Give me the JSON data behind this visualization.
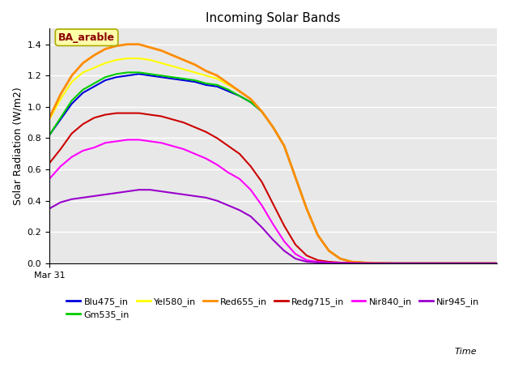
{
  "title": "Incoming Solar Bands",
  "ylabel": "Solar Radiation (W/m2)",
  "annotation": "BA_arable",
  "annotation_color": "#8B0000",
  "annotation_bg": "#FFFFAA",
  "annotation_border": "#AAAA00",
  "ylim": [
    0.0,
    1.5
  ],
  "x_tick_label": "Mar 31",
  "x_tick_pos": 0,
  "time_label": "Time",
  "background_color": "#E8E8E8",
  "series_order": [
    "Blu475_in",
    "Gm535_in",
    "Yel580_in",
    "Red655_in",
    "Redg715_in",
    "Nir840_in",
    "Nir945_in"
  ],
  "series": {
    "Blu475_in": {
      "color": "#0000DD",
      "lw": 1.5,
      "x": [
        0,
        1,
        2,
        3,
        4,
        5,
        6,
        7,
        8,
        9,
        10,
        11,
        12,
        13,
        14,
        15,
        16,
        17,
        18,
        19,
        20,
        21,
        22,
        23,
        24,
        25,
        26,
        27,
        28,
        29,
        30,
        31,
        32,
        33,
        34,
        35,
        36,
        37,
        38,
        39,
        40
      ],
      "y": [
        0.82,
        0.92,
        1.02,
        1.09,
        1.13,
        1.17,
        1.19,
        1.2,
        1.21,
        1.2,
        1.19,
        1.18,
        1.17,
        1.16,
        1.14,
        1.13,
        1.1,
        1.07,
        1.03,
        0.97,
        0.87,
        0.75,
        0.55,
        0.35,
        0.18,
        0.08,
        0.03,
        0.01,
        0.005,
        0.002,
        0.001,
        0.0,
        0.0,
        0.0,
        0.0,
        0.0,
        0.0,
        0.0,
        0.0,
        0.0,
        0.0
      ]
    },
    "Gm535_in": {
      "color": "#00CC00",
      "lw": 1.5,
      "x": [
        0,
        1,
        2,
        3,
        4,
        5,
        6,
        7,
        8,
        9,
        10,
        11,
        12,
        13,
        14,
        15,
        16,
        17,
        18,
        19,
        20,
        21,
        22,
        23,
        24,
        25,
        26,
        27,
        28,
        29,
        30,
        31,
        32,
        33,
        34,
        35,
        36,
        37,
        38,
        39,
        40
      ],
      "y": [
        0.82,
        0.93,
        1.04,
        1.11,
        1.15,
        1.19,
        1.21,
        1.22,
        1.22,
        1.21,
        1.2,
        1.19,
        1.18,
        1.17,
        1.15,
        1.14,
        1.11,
        1.07,
        1.03,
        0.97,
        0.87,
        0.75,
        0.55,
        0.35,
        0.18,
        0.08,
        0.03,
        0.01,
        0.005,
        0.002,
        0.001,
        0.0,
        0.0,
        0.0,
        0.0,
        0.0,
        0.0,
        0.0,
        0.0,
        0.0,
        0.0
      ]
    },
    "Yel580_in": {
      "color": "#FFFF00",
      "lw": 1.5,
      "x": [
        0,
        1,
        2,
        3,
        4,
        5,
        6,
        7,
        8,
        9,
        10,
        11,
        12,
        13,
        14,
        15,
        16,
        17,
        18,
        19,
        20,
        21,
        22,
        23,
        24,
        25,
        26,
        27,
        28,
        29,
        30,
        31,
        32,
        33,
        34,
        35,
        36,
        37,
        38,
        39,
        40
      ],
      "y": [
        0.92,
        1.05,
        1.16,
        1.22,
        1.25,
        1.28,
        1.3,
        1.31,
        1.31,
        1.3,
        1.28,
        1.26,
        1.24,
        1.22,
        1.2,
        1.18,
        1.14,
        1.1,
        1.05,
        0.97,
        0.87,
        0.75,
        0.55,
        0.35,
        0.18,
        0.08,
        0.03,
        0.01,
        0.005,
        0.002,
        0.001,
        0.0,
        0.0,
        0.0,
        0.0,
        0.0,
        0.0,
        0.0,
        0.0,
        0.0,
        0.0
      ]
    },
    "Red655_in": {
      "color": "#FF8C00",
      "lw": 2.0,
      "x": [
        0,
        1,
        2,
        3,
        4,
        5,
        6,
        7,
        8,
        9,
        10,
        11,
        12,
        13,
        14,
        15,
        16,
        17,
        18,
        19,
        20,
        21,
        22,
        23,
        24,
        25,
        26,
        27,
        28,
        29,
        30,
        31,
        32,
        33,
        34,
        35,
        36,
        37,
        38,
        39,
        40
      ],
      "y": [
        0.93,
        1.08,
        1.2,
        1.28,
        1.33,
        1.37,
        1.39,
        1.4,
        1.4,
        1.38,
        1.36,
        1.33,
        1.3,
        1.27,
        1.23,
        1.2,
        1.15,
        1.1,
        1.05,
        0.97,
        0.87,
        0.75,
        0.55,
        0.35,
        0.18,
        0.08,
        0.03,
        0.01,
        0.005,
        0.002,
        0.001,
        0.0,
        0.0,
        0.0,
        0.0,
        0.0,
        0.0,
        0.0,
        0.0,
        0.0,
        0.0
      ]
    },
    "Redg715_in": {
      "color": "#CC0000",
      "lw": 1.5,
      "x": [
        0,
        1,
        2,
        3,
        4,
        5,
        6,
        7,
        8,
        9,
        10,
        11,
        12,
        13,
        14,
        15,
        16,
        17,
        18,
        19,
        20,
        21,
        22,
        23,
        24,
        25,
        26,
        27,
        28,
        29,
        30,
        31,
        32,
        33,
        34,
        35,
        36,
        37,
        38,
        39,
        40
      ],
      "y": [
        0.64,
        0.73,
        0.83,
        0.89,
        0.93,
        0.95,
        0.96,
        0.96,
        0.96,
        0.95,
        0.94,
        0.92,
        0.9,
        0.87,
        0.84,
        0.8,
        0.75,
        0.7,
        0.62,
        0.52,
        0.38,
        0.24,
        0.12,
        0.05,
        0.02,
        0.01,
        0.005,
        0.002,
        0.001,
        0.0,
        0.0,
        0.0,
        0.0,
        0.0,
        0.0,
        0.0,
        0.0,
        0.0,
        0.0,
        0.0,
        0.0
      ]
    },
    "Nir840_in": {
      "color": "#FF00FF",
      "lw": 1.5,
      "x": [
        0,
        1,
        2,
        3,
        4,
        5,
        6,
        7,
        8,
        9,
        10,
        11,
        12,
        13,
        14,
        15,
        16,
        17,
        18,
        19,
        20,
        21,
        22,
        23,
        24,
        25,
        26,
        27,
        28,
        29,
        30,
        31,
        32,
        33,
        34,
        35,
        36,
        37,
        38,
        39,
        40
      ],
      "y": [
        0.54,
        0.62,
        0.68,
        0.72,
        0.74,
        0.77,
        0.78,
        0.79,
        0.79,
        0.78,
        0.77,
        0.75,
        0.73,
        0.7,
        0.67,
        0.63,
        0.58,
        0.54,
        0.47,
        0.37,
        0.25,
        0.14,
        0.06,
        0.02,
        0.01,
        0.005,
        0.002,
        0.001,
        0.0,
        0.0,
        0.0,
        0.0,
        0.0,
        0.0,
        0.0,
        0.0,
        0.0,
        0.0,
        0.0,
        0.0,
        0.0
      ]
    },
    "Nir945_in": {
      "color": "#9900CC",
      "lw": 1.5,
      "x": [
        0,
        1,
        2,
        3,
        4,
        5,
        6,
        7,
        8,
        9,
        10,
        11,
        12,
        13,
        14,
        15,
        16,
        17,
        18,
        19,
        20,
        21,
        22,
        23,
        24,
        25,
        26,
        27,
        28,
        29,
        30,
        31,
        32,
        33,
        34,
        35,
        36,
        37,
        38,
        39,
        40
      ],
      "y": [
        0.35,
        0.39,
        0.41,
        0.42,
        0.43,
        0.44,
        0.45,
        0.46,
        0.47,
        0.47,
        0.46,
        0.45,
        0.44,
        0.43,
        0.42,
        0.4,
        0.37,
        0.34,
        0.3,
        0.23,
        0.15,
        0.08,
        0.03,
        0.01,
        0.005,
        0.002,
        0.001,
        0.0,
        0.0,
        0.0,
        0.0,
        0.0,
        0.0,
        0.0,
        0.0,
        0.0,
        0.0,
        0.0,
        0.0,
        0.0,
        0.0
      ]
    }
  },
  "legend": [
    {
      "label": "Blu475_in",
      "color": "#0000DD"
    },
    {
      "label": "Gm535_in",
      "color": "#00CC00"
    },
    {
      "label": "Yel580_in",
      "color": "#FFFF00"
    },
    {
      "label": "Red655_in",
      "color": "#FF8C00"
    },
    {
      "label": "Redg715_in",
      "color": "#CC0000"
    },
    {
      "label": "Nir840_in",
      "color": "#FF00FF"
    },
    {
      "label": "Nir945_in",
      "color": "#9900CC"
    }
  ]
}
